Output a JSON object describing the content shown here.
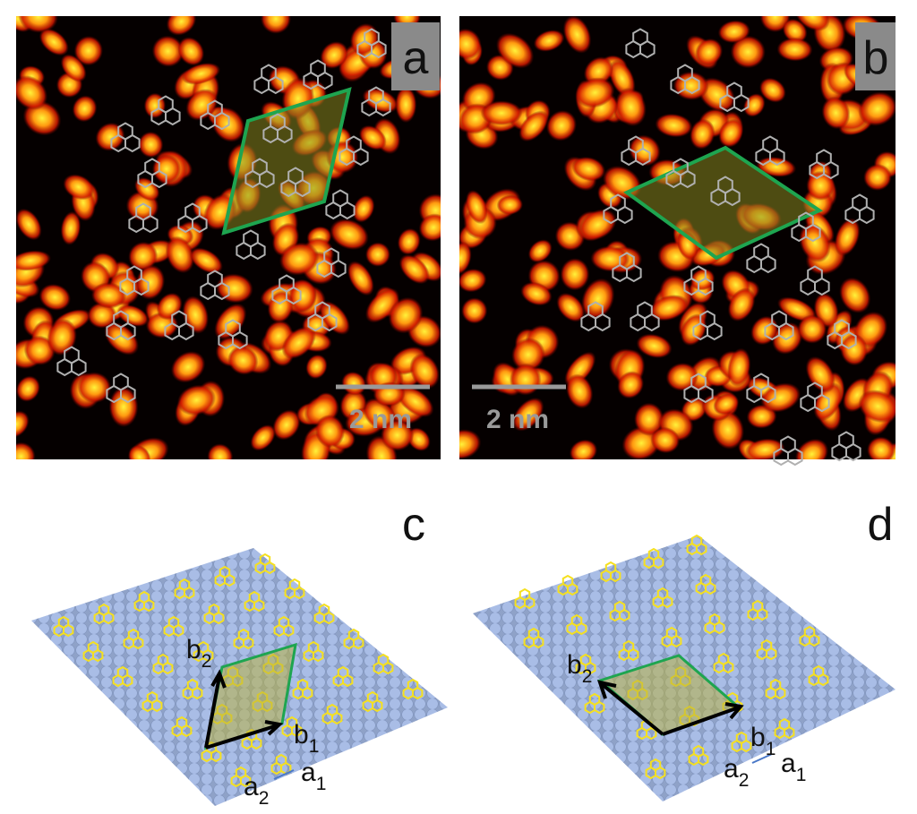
{
  "panels": [
    {
      "label": "a",
      "scale_bar": "2 nm"
    },
    {
      "label": "b",
      "scale_bar": "2 nm"
    },
    {
      "label": "c",
      "vectors": [
        {
          "base": "b",
          "sub": "2"
        },
        {
          "base": "b",
          "sub": "1"
        }
      ],
      "lattice": [
        {
          "base": "a",
          "sub": "2"
        },
        {
          "base": "a",
          "sub": "1"
        }
      ]
    },
    {
      "label": "d",
      "vectors": [
        {
          "base": "b",
          "sub": "2"
        },
        {
          "base": "b",
          "sub": "1"
        }
      ],
      "lattice": [
        {
          "base": "a",
          "sub": "2"
        },
        {
          "base": "a",
          "sub": "1"
        }
      ]
    }
  ]
}
